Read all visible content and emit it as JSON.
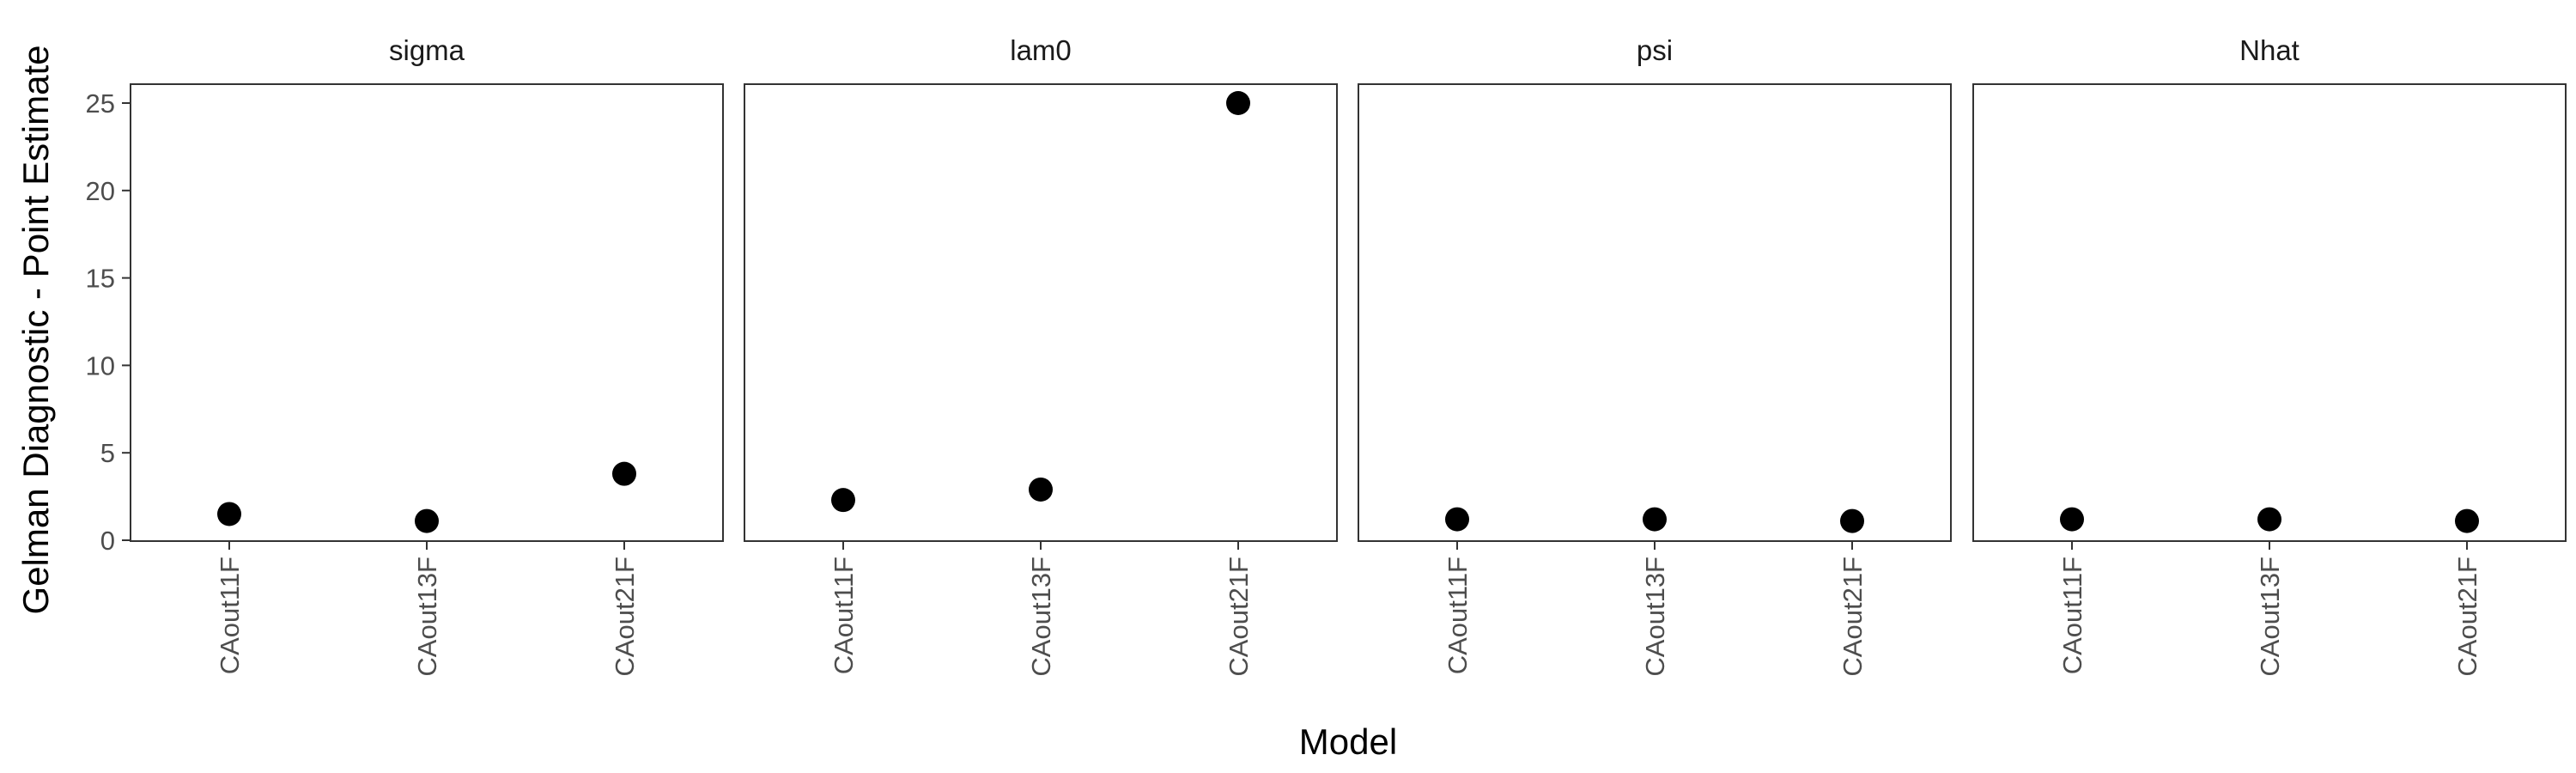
{
  "chart_data": {
    "type": "scatter",
    "ylabel": "Gelman Diagnostic - Point Estimate",
    "xlabel": "Model",
    "categories": [
      "CAout11F",
      "CAout13F",
      "CAout21F"
    ],
    "ylim": [
      0,
      26
    ],
    "yticks": [
      0,
      5,
      10,
      15,
      20,
      25
    ],
    "grid": false,
    "facets": [
      {
        "name": "sigma",
        "values": [
          1.5,
          1.1,
          3.8
        ]
      },
      {
        "name": "lam0",
        "values": [
          2.3,
          2.9,
          25.0
        ]
      },
      {
        "name": "psi",
        "values": [
          1.2,
          1.2,
          1.1
        ]
      },
      {
        "name": "Nhat",
        "values": [
          1.2,
          1.2,
          1.1
        ]
      }
    ]
  }
}
